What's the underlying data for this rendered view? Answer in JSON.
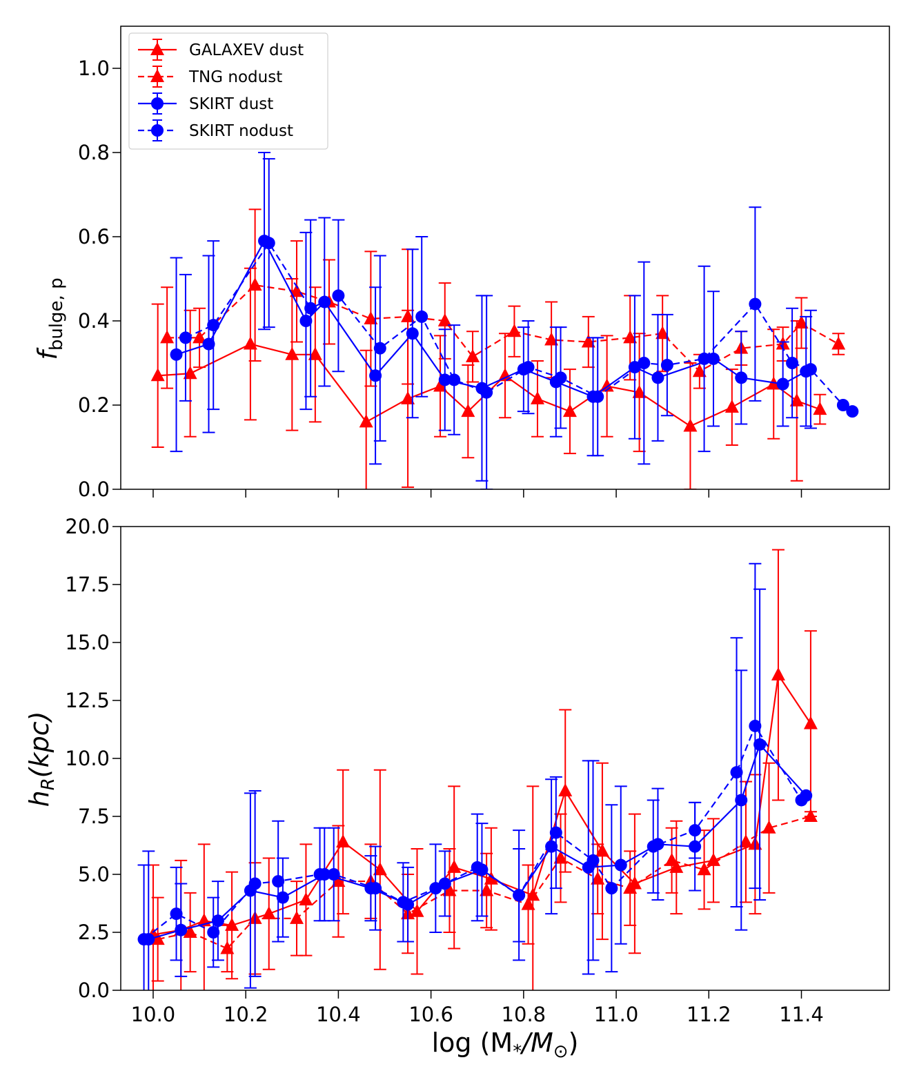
{
  "chart_data": [
    {
      "type": "line",
      "panel": "top",
      "ylabel": "f",
      "ylabel_sub": "bulge, p",
      "xlim": [
        9.93,
        11.59
      ],
      "ylim": [
        0.0,
        1.1
      ],
      "yticks": [
        0.0,
        0.2,
        0.4,
        0.6,
        0.8,
        1.0
      ],
      "ytick_labels": [
        "0.0",
        "0.2",
        "0.4",
        "0.6",
        "0.8",
        "1.0"
      ],
      "xticks": [
        10.0,
        10.2,
        10.4,
        10.6,
        10.8,
        11.0,
        11.2,
        11.4
      ],
      "legend_position": "upper-left",
      "series": [
        {
          "name": "GALAXEV dust",
          "color": "#ff0000",
          "linestyle": "solid",
          "marker": "triangle",
          "x": [
            10.01,
            10.08,
            10.21,
            10.3,
            10.35,
            10.46,
            10.55,
            10.62,
            10.68,
            10.76,
            10.83,
            10.9,
            10.98,
            11.05,
            11.16,
            11.25,
            11.34,
            11.39,
            11.44
          ],
          "y": [
            0.27,
            0.275,
            0.345,
            0.32,
            0.32,
            0.16,
            0.215,
            0.245,
            0.185,
            0.27,
            0.215,
            0.185,
            0.245,
            0.23,
            0.15,
            0.195,
            0.25,
            0.21,
            0.19
          ],
          "err": [
            0.17,
            0.15,
            0.18,
            0.18,
            0.16,
            0.17,
            0.21,
            0.12,
            0.11,
            0.1,
            0.09,
            0.1,
            0.12,
            0.14,
            0.15,
            0.09,
            0.13,
            0.19,
            0.035
          ]
        },
        {
          "name": "TNG nodust",
          "color": "#ff0000",
          "linestyle": "dashed",
          "marker": "triangle",
          "x": [
            10.03,
            10.1,
            10.22,
            10.31,
            10.38,
            10.47,
            10.55,
            10.63,
            10.69,
            10.78,
            10.86,
            10.94,
            11.03,
            11.1,
            11.18,
            11.27,
            11.36,
            11.4,
            11.48
          ],
          "y": [
            0.36,
            0.36,
            0.485,
            0.47,
            0.445,
            0.405,
            0.41,
            0.4,
            0.315,
            0.375,
            0.355,
            0.35,
            0.36,
            0.37,
            0.28,
            0.335,
            0.345,
            0.395,
            0.345
          ],
          "err": [
            0.12,
            0.07,
            0.18,
            0.12,
            0.1,
            0.16,
            0.16,
            0.09,
            0.06,
            0.06,
            0.09,
            0.06,
            0.1,
            0.09,
            0.04,
            0.04,
            0.04,
            0.06,
            0.025
          ]
        },
        {
          "name": "SKIRT dust",
          "color": "#0000ff",
          "linestyle": "solid",
          "marker": "circle",
          "x": [
            10.05,
            10.12,
            10.24,
            10.33,
            10.37,
            10.48,
            10.56,
            10.63,
            10.71,
            10.8,
            10.87,
            10.95,
            11.04,
            11.09,
            11.21,
            11.27,
            11.36,
            11.41
          ],
          "y": [
            0.32,
            0.345,
            0.59,
            0.4,
            0.445,
            0.27,
            0.37,
            0.26,
            0.24,
            0.285,
            0.255,
            0.22,
            0.29,
            0.265,
            0.31,
            0.265,
            0.25,
            0.28
          ],
          "err": [
            0.23,
            0.21,
            0.21,
            0.21,
            0.2,
            0.21,
            0.2,
            0.12,
            0.22,
            0.1,
            0.13,
            0.14,
            0.17,
            0.15,
            0.16,
            0.11,
            0.1,
            0.13
          ]
        },
        {
          "name": "SKIRT nodust",
          "color": "#0000ff",
          "linestyle": "dashed",
          "marker": "circle",
          "x": [
            10.07,
            10.13,
            10.25,
            10.34,
            10.4,
            10.49,
            10.58,
            10.65,
            10.72,
            10.81,
            10.88,
            10.96,
            11.06,
            11.11,
            11.19,
            11.3,
            11.38,
            11.42,
            11.49,
            11.51
          ],
          "y": [
            0.36,
            0.39,
            0.585,
            0.43,
            0.46,
            0.335,
            0.41,
            0.26,
            0.23,
            0.29,
            0.265,
            0.22,
            0.3,
            0.295,
            0.31,
            0.44,
            0.3,
            0.285,
            0.2,
            0.185
          ],
          "err": [
            0.15,
            0.2,
            0.2,
            0.21,
            0.18,
            0.22,
            0.19,
            0.13,
            0.23,
            0.11,
            0.12,
            0.14,
            0.24,
            0.12,
            0.22,
            0.23,
            0.13,
            0.14,
            0.0,
            0.0
          ]
        }
      ]
    },
    {
      "type": "line",
      "panel": "bottom",
      "ylabel": "h",
      "ylabel_sub": "R",
      "ylabel_suffix": "(kpc)",
      "xlabel": "log (M",
      "xlabel_sub1": "*",
      "xlabel_mid": "/M",
      "xlabel_sub2": "⊙",
      "xlabel_end": ")",
      "xlim": [
        9.93,
        11.59
      ],
      "ylim": [
        0.0,
        20.0
      ],
      "yticks": [
        0.0,
        2.5,
        5.0,
        7.5,
        10.0,
        12.5,
        15.0,
        17.5,
        20.0
      ],
      "ytick_labels": [
        "0.0",
        "2.5",
        "5.0",
        "7.5",
        "10.0",
        "12.5",
        "15.0",
        "17.5",
        "20.0"
      ],
      "xticks": [
        10.0,
        10.2,
        10.4,
        10.6,
        10.8,
        11.0,
        11.2,
        11.4
      ],
      "xtick_labels": [
        "10.0",
        "10.2",
        "10.4",
        "10.6",
        "10.8",
        "11.0",
        "11.2",
        "11.4"
      ],
      "series": [
        {
          "name": "GALAXEV dust",
          "color": "#ff0000",
          "linestyle": "solid",
          "marker": "triangle",
          "x": [
            10.0,
            10.06,
            10.11,
            10.17,
            10.25,
            10.33,
            10.41,
            10.49,
            10.57,
            10.65,
            10.73,
            10.82,
            10.89,
            10.97,
            11.04,
            11.13,
            11.21,
            11.3,
            11.35,
            11.42
          ],
          "y": [
            2.4,
            2.6,
            3.0,
            2.8,
            3.3,
            3.9,
            6.4,
            5.2,
            3.4,
            5.3,
            4.8,
            4.1,
            8.6,
            6.0,
            4.6,
            5.3,
            5.6,
            6.3,
            13.6,
            11.5
          ],
          "err": [
            3.0,
            3.0,
            3.3,
            2.3,
            2.4,
            2.4,
            3.1,
            4.3,
            2.7,
            3.5,
            2.2,
            4.7,
            3.5,
            3.8,
            3.0,
            2.0,
            1.8,
            3.0,
            5.4,
            4.0
          ]
        },
        {
          "name": "TNG nodust",
          "color": "#ff0000",
          "linestyle": "dashed",
          "marker": "triangle",
          "x": [
            10.01,
            10.08,
            10.16,
            10.22,
            10.31,
            10.4,
            10.47,
            10.55,
            10.64,
            10.72,
            10.81,
            10.88,
            10.96,
            11.03,
            11.12,
            11.19,
            11.28,
            11.33,
            11.42
          ],
          "y": [
            2.2,
            2.5,
            1.8,
            3.1,
            3.1,
            4.7,
            4.7,
            3.3,
            4.3,
            4.3,
            3.7,
            5.7,
            4.8,
            4.4,
            5.6,
            5.2,
            6.4,
            7.0,
            7.5
          ],
          "err": [
            1.8,
            1.7,
            1.0,
            2.4,
            1.6,
            2.4,
            1.6,
            1.7,
            1.8,
            1.6,
            1.7,
            1.9,
            1.5,
            1.6,
            1.4,
            1.7,
            2.6,
            2.8,
            0.2
          ]
        },
        {
          "name": "SKIRT dust",
          "color": "#0000ff",
          "linestyle": "solid",
          "marker": "circle",
          "x": [
            9.99,
            10.06,
            10.14,
            10.21,
            10.28,
            10.37,
            10.47,
            10.55,
            10.63,
            10.71,
            10.79,
            10.86,
            10.94,
            11.01,
            11.09,
            11.17,
            11.27,
            11.31,
            11.41
          ],
          "y": [
            2.2,
            2.6,
            3.0,
            4.3,
            4.0,
            5.0,
            4.4,
            3.7,
            4.6,
            5.2,
            4.1,
            6.2,
            5.3,
            5.4,
            6.3,
            6.2,
            8.2,
            10.6,
            8.4
          ],
          "err": [
            3.8,
            2.0,
            1.7,
            4.2,
            1.7,
            2.0,
            1.4,
            1.6,
            1.4,
            2.0,
            2.0,
            2.9,
            4.6,
            3.4,
            2.4,
            1.9,
            5.6,
            6.7,
            0.0
          ]
        },
        {
          "name": "SKIRT nodust",
          "color": "#0000ff",
          "linestyle": "dashed",
          "marker": "circle",
          "x": [
            9.98,
            10.05,
            10.13,
            10.22,
            10.27,
            10.36,
            10.39,
            10.48,
            10.54,
            10.61,
            10.7,
            10.79,
            10.87,
            10.95,
            10.99,
            11.08,
            11.17,
            11.26,
            11.3,
            11.4
          ],
          "y": [
            2.2,
            3.3,
            2.5,
            4.6,
            4.7,
            5.0,
            5.0,
            4.4,
            3.8,
            4.4,
            5.3,
            4.1,
            6.8,
            5.6,
            4.4,
            6.2,
            6.9,
            9.4,
            11.4,
            8.2
          ],
          "err": [
            3.2,
            2.0,
            1.5,
            4.0,
            2.6,
            2.0,
            2.0,
            1.8,
            1.7,
            1.9,
            2.3,
            2.8,
            2.4,
            4.3,
            3.6,
            2.0,
            1.2,
            5.8,
            7.0,
            0.0
          ]
        }
      ]
    }
  ]
}
